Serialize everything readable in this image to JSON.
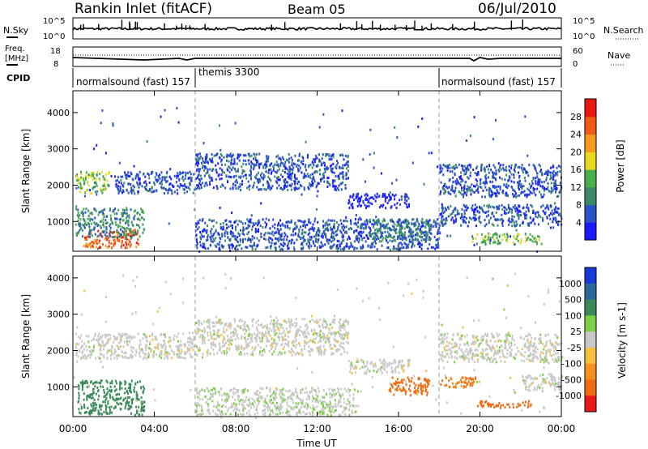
{
  "header": {
    "station": "Rankin Inlet (fitACF)",
    "beam": "Beam 05",
    "date": "06/Jul/2010"
  },
  "noise_panel": {
    "left_label": "N.Sky",
    "left_top_tick": "10^5",
    "left_bottom_tick": "10^0",
    "right_label": "N.Search",
    "right_top_tick": "10^5",
    "right_bottom_tick": "10^0"
  },
  "freq_panel": {
    "left_label_line1": "Freq.",
    "left_label_line2": "[MHz]",
    "left_top_tick": "18",
    "left_bottom_tick": "8",
    "right_label": "Nave",
    "right_top_tick": "60",
    "right_bottom_tick": "0"
  },
  "cpid_panel": {
    "label": "CPID",
    "segments": [
      {
        "label": "normalsound (fast) 157",
        "start_hour": 0.0
      },
      {
        "label": "themis 3300",
        "start_hour": 6.0
      },
      {
        "label": "normalsound (fast) 157",
        "start_hour": 18.0
      }
    ]
  },
  "power_panel": {
    "ylabel": "Slant Range [km]",
    "yticks": [
      "1000",
      "2000",
      "3000",
      "4000"
    ],
    "colorbar_label": "Power [dB]",
    "colorbar_ticks": [
      "4",
      "8",
      "12",
      "16",
      "20",
      "24",
      "28"
    ],
    "colors": [
      "#1a1aff",
      "#2a52c9",
      "#3a8a6a",
      "#48b048",
      "#e8d820",
      "#f59a20",
      "#f05a14",
      "#e81810"
    ]
  },
  "velocity_panel": {
    "ylabel": "Slant Range [km]",
    "yticks": [
      "1000",
      "2000",
      "3000",
      "4000"
    ],
    "colorbar_label": "Velocity [m s-1]",
    "colorbar_ticks": [
      "1000",
      "500",
      "100",
      "25",
      "-25",
      "-100",
      "-500",
      "-1000"
    ],
    "colors": [
      "#1a3ad8",
      "#2a6a9a",
      "#3a8a5a",
      "#7ad040",
      "#c8c8c8",
      "#f5c040",
      "#f59020",
      "#f06a10",
      "#e81818"
    ]
  },
  "x_axis": {
    "label": "Time UT",
    "ticks": [
      "00:00",
      "04:00",
      "08:00",
      "12:00",
      "16:00",
      "20:00",
      "00:00"
    ]
  },
  "chart_data": {
    "type": "heatmap",
    "title": "Rankin Inlet (fitACF)",
    "subtitle": "Beam 05  06/Jul/2010",
    "xlabel": "Time UT",
    "ylabel": "Slant Range [km]",
    "xlim_hours": [
      0,
      24
    ],
    "ylim_km": [
      180,
      4600
    ],
    "power_colorbar_db": [
      4,
      8,
      12,
      16,
      20,
      24,
      28
    ],
    "velocity_colorbar_ms": [
      1000,
      500,
      100,
      25,
      -25,
      -100,
      -500,
      -1000
    ],
    "power_regions": [
      {
        "t0": 0.5,
        "t1": 3.2,
        "r0": 300,
        "r1": 800,
        "db": 28
      },
      {
        "t0": 0.1,
        "t1": 3.5,
        "r0": 600,
        "r1": 1400,
        "db": 10
      },
      {
        "t0": 0.1,
        "t1": 1.8,
        "r0": 1800,
        "r1": 2400,
        "db": 14
      },
      {
        "t0": 2.0,
        "t1": 6.0,
        "r0": 1800,
        "r1": 2400,
        "db": 8
      },
      {
        "t0": 6.0,
        "t1": 13.5,
        "r0": 1900,
        "r1": 2900,
        "db": 6
      },
      {
        "t0": 13.5,
        "t1": 16.5,
        "r0": 1400,
        "r1": 1800,
        "db": 4
      },
      {
        "t0": 6.0,
        "t1": 18.0,
        "r0": 250,
        "r1": 1100,
        "db": 6
      },
      {
        "t0": 14.5,
        "t1": 17.5,
        "r0": 500,
        "r1": 1100,
        "db": 12
      },
      {
        "t0": 18.0,
        "t1": 24.0,
        "r0": 1700,
        "r1": 2600,
        "db": 8
      },
      {
        "t0": 18.0,
        "t1": 24.0,
        "r0": 900,
        "r1": 1500,
        "db": 6
      },
      {
        "t0": 19.5,
        "t1": 23.0,
        "r0": 400,
        "r1": 700,
        "db": 14
      }
    ],
    "velocity_regions": [
      {
        "t0": 0.2,
        "t1": 3.5,
        "r0": 250,
        "r1": 1200,
        "v": 100
      },
      {
        "t0": 0.1,
        "t1": 6.0,
        "r0": 1800,
        "r1": 2500,
        "v": 0
      },
      {
        "t0": 6.0,
        "t1": 13.5,
        "r0": 1900,
        "r1": 2900,
        "v": 0
      },
      {
        "t0": 13.5,
        "t1": 16.5,
        "r0": 1400,
        "r1": 1800,
        "v": 0
      },
      {
        "t0": 6.0,
        "t1": 14.0,
        "r0": 250,
        "r1": 1000,
        "v": 10
      },
      {
        "t0": 15.5,
        "t1": 17.5,
        "r0": 800,
        "r1": 1300,
        "v": -500
      },
      {
        "t0": 18.0,
        "t1": 24.0,
        "r0": 1700,
        "r1": 2500,
        "v": 0
      },
      {
        "t0": 18.0,
        "t1": 19.8,
        "r0": 1000,
        "r1": 1300,
        "v": -300
      },
      {
        "t0": 19.8,
        "t1": 22.5,
        "r0": 450,
        "r1": 650,
        "v": -500
      },
      {
        "t0": 22.0,
        "t1": 24.0,
        "r0": 900,
        "r1": 1400,
        "v": 0
      }
    ]
  }
}
